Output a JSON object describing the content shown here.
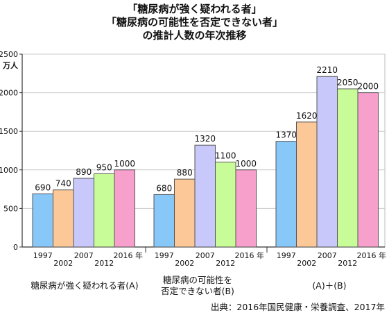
{
  "chart_data": {
    "type": "bar",
    "title_lines": [
      "「糖尿病が強く疑われる者」",
      "「糖尿病の可能性を否定できない者」",
      "の推計人数の年次推移"
    ],
    "y_unit": "万人",
    "ylim": [
      0,
      2500
    ],
    "yticks": [
      0,
      500,
      1000,
      1500,
      2000,
      2500
    ],
    "grid": true,
    "year_labels": [
      "1997",
      "2002",
      "2007",
      "2012",
      "2016 年"
    ],
    "series_colors": [
      "#88c8f8",
      "#fcc898",
      "#c8c8fa",
      "#c8fc98",
      "#f8a0cc"
    ],
    "groups": [
      {
        "label": "糖尿病が強く疑われる者(A)",
        "values": [
          690,
          740,
          890,
          950,
          1000
        ]
      },
      {
        "label": "糖尿病の可能性を\n否定できない者(B)",
        "values": [
          680,
          880,
          1320,
          1100,
          1000
        ]
      },
      {
        "label": "(A)＋(B)",
        "values": [
          1370,
          1620,
          2210,
          2050,
          2000
        ]
      }
    ],
    "source": "出典：2016年国民健康・栄養調査、2017年"
  }
}
